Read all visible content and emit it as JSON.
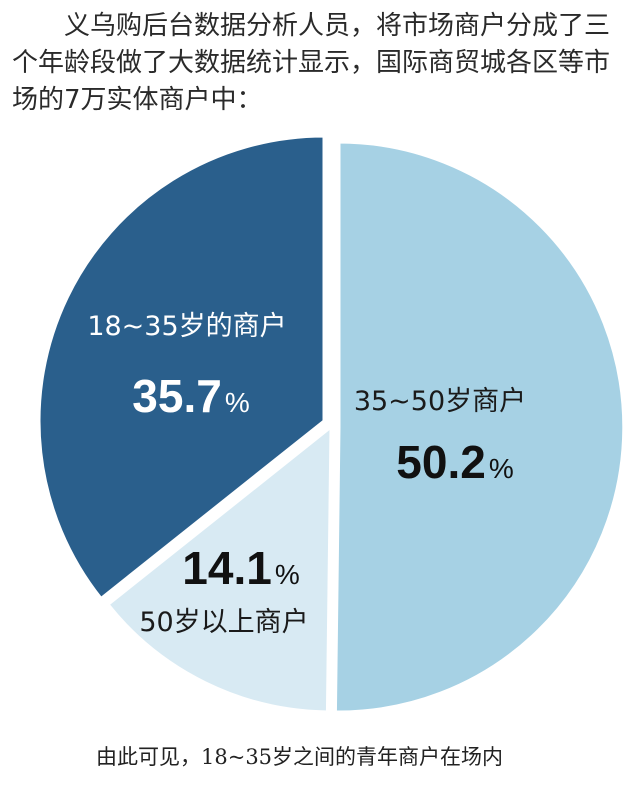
{
  "intro_text": "义乌购后台数据分析人员，将市场商户分成了三个年龄段做了大数据统计显示，国际商贸城各区等市场的7万实体商户中：",
  "chart_data": {
    "type": "pie",
    "slices": [
      {
        "label": "35~50岁商户",
        "value": 50.2,
        "value_text": "50.2",
        "unit": "%",
        "color": "#a6d1e4"
      },
      {
        "label": "50岁以上商户",
        "value": 14.1,
        "value_text": "14.1",
        "unit": "%",
        "color": "#d8eaf3"
      },
      {
        "label": "18~35岁的商户",
        "value": 35.7,
        "value_text": "35.7",
        "unit": "%",
        "color": "#2a5f8c"
      }
    ]
  },
  "caption_text": "由此可见，18~35岁之间的青年商户在场内"
}
